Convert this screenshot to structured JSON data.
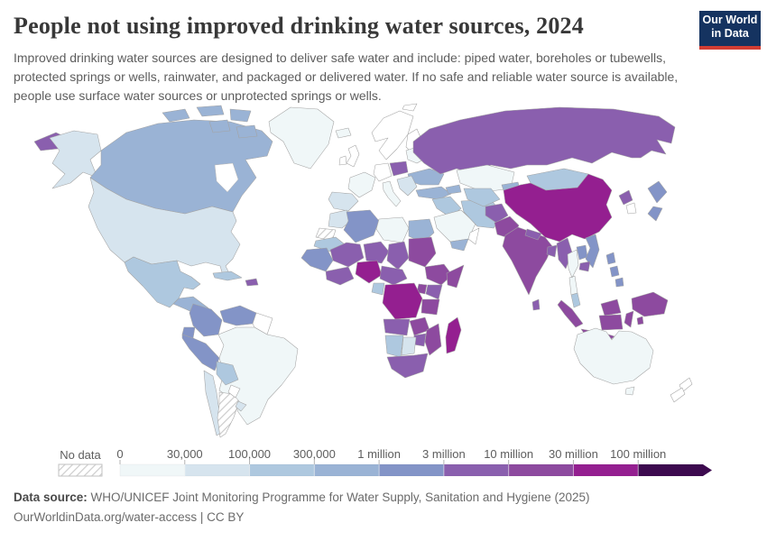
{
  "header": {
    "title": "People not using improved drinking water sources, 2024",
    "subtitle": "Improved drinking water sources are designed to deliver safe water and include: piped water, boreholes or tubewells, protected springs or wells, rainwater, and packaged or delivered water. If no safe and reliable water source is available, people use surface water sources or unprotected springs or wells.",
    "logo": {
      "line1": "Our World",
      "line2": "in Data",
      "bg_color": "#153360",
      "accent_color": "#d23d33"
    }
  },
  "footer": {
    "source_label": "Data source:",
    "source_text": " WHO/UNICEF Joint Monitoring Programme for Water Supply, Sanitation and Hygiene (2025)",
    "note_text": "OurWorldinData.org/water-access | CC BY"
  },
  "chart_data": {
    "type": "choropleth",
    "title": "People not using improved drinking water sources",
    "year": "2024",
    "legend": {
      "no_data_label": "No data",
      "tick_labels": [
        "0",
        "30,000",
        "100,000",
        "300,000",
        "1 million",
        "3 million",
        "10 million",
        "30 million",
        "100 million"
      ],
      "bin_labels": [
        "0–30,000",
        "30,000–100,000",
        "100,000–300,000",
        "300,000–1 million",
        "1–3 million",
        "3–10 million",
        "10–30 million",
        "30–100 million",
        "100 million+"
      ],
      "colors": [
        "#f0f7f8",
        "#d6e4ee",
        "#aec8df",
        "#9ab3d5",
        "#8394c7",
        "#8a5fae",
        "#8d4a9f",
        "#941f90",
        "#3d0a4f"
      ],
      "zero_color": "#ffffff",
      "tick_color": "#b3b3b3",
      "label_color": "#5d5d5d"
    },
    "regions": [
      {
        "id": "chukotka",
        "name": "Russia (Far East)",
        "bin": 5
      },
      {
        "id": "alaska",
        "name": "United States (Alaska)",
        "bin": 1
      },
      {
        "id": "canada",
        "name": "Canada",
        "bin": 3
      },
      {
        "id": "arctic1",
        "name": "Canada (Arctic islands)",
        "bin": 3
      },
      {
        "id": "arctic2",
        "name": "Canada (Arctic islands)",
        "bin": 3
      },
      {
        "id": "arctic3",
        "name": "Canada (Arctic islands)",
        "bin": 3
      },
      {
        "id": "arctic4",
        "name": "Canada (Arctic islands)",
        "bin": 3
      },
      {
        "id": "arctic5",
        "name": "Canada (Arctic islands)",
        "bin": 3
      },
      {
        "id": "greenland",
        "name": "Greenland",
        "bin": 0
      },
      {
        "id": "usa",
        "name": "United States",
        "bin": 1
      },
      {
        "id": "mexico",
        "name": "Mexico",
        "bin": 2
      },
      {
        "id": "camerica",
        "name": "Central America",
        "bin": 3
      },
      {
        "id": "cuba",
        "name": "Cuba",
        "bin": 2
      },
      {
        "id": "haiti",
        "name": "Haiti",
        "bin": 5
      },
      {
        "id": "colombia",
        "name": "Colombia",
        "bin": 4
      },
      {
        "id": "venezuela",
        "name": "Venezuela",
        "bin": 4
      },
      {
        "id": "guyanas",
        "name": "Guyanas",
        "bin": "zero"
      },
      {
        "id": "brazil",
        "name": "Brazil",
        "bin": 0
      },
      {
        "id": "ecuador",
        "name": "Ecuador",
        "bin": 4
      },
      {
        "id": "peru",
        "name": "Peru",
        "bin": 4
      },
      {
        "id": "bolivia",
        "name": "Bolivia",
        "bin": 2
      },
      {
        "id": "chile",
        "name": "Chile",
        "bin": 1
      },
      {
        "id": "argentina",
        "name": "Argentina",
        "bin": "nodata"
      },
      {
        "id": "paraguay",
        "name": "Paraguay",
        "bin": "zero"
      },
      {
        "id": "uruguay",
        "name": "Uruguay",
        "bin": 1
      },
      {
        "id": "iceland",
        "name": "Iceland",
        "bin": 0
      },
      {
        "id": "svalbard",
        "name": "Svalbard",
        "bin": "zero"
      },
      {
        "id": "uk",
        "name": "United Kingdom",
        "bin": "zero"
      },
      {
        "id": "ireland",
        "name": "Ireland",
        "bin": "zero"
      },
      {
        "id": "scandinavia",
        "name": "Scandinavia",
        "bin": "zero"
      },
      {
        "id": "finland",
        "name": "Finland",
        "bin": "zero"
      },
      {
        "id": "france",
        "name": "France",
        "bin": 0
      },
      {
        "id": "germany",
        "name": "Germany",
        "bin": "zero"
      },
      {
        "id": "poland",
        "name": "Poland",
        "bin": 5
      },
      {
        "id": "baltics",
        "name": "Baltics & Belarus",
        "bin": 0
      },
      {
        "id": "ukraine",
        "name": "Ukraine",
        "bin": 3
      },
      {
        "id": "iberia",
        "name": "Spain & Portugal",
        "bin": 1
      },
      {
        "id": "italy",
        "name": "Italy",
        "bin": 0
      },
      {
        "id": "balkans",
        "name": "Balkans",
        "bin": 1
      },
      {
        "id": "morocco",
        "name": "Morocco",
        "bin": 1
      },
      {
        "id": "wsahara",
        "name": "Western Sahara",
        "bin": "nodata"
      },
      {
        "id": "mauritania",
        "name": "Mauritania",
        "bin": 2
      },
      {
        "id": "algeria",
        "name": "Algeria",
        "bin": 4
      },
      {
        "id": "libya",
        "name": "Libya",
        "bin": 0
      },
      {
        "id": "egypt",
        "name": "Egypt",
        "bin": 3
      },
      {
        "id": "mali",
        "name": "Mali",
        "bin": 5
      },
      {
        "id": "niger",
        "name": "Niger",
        "bin": 5
      },
      {
        "id": "chad",
        "name": "Chad",
        "bin": 5
      },
      {
        "id": "sudan",
        "name": "Sudan",
        "bin": 6
      },
      {
        "id": "wafrica",
        "name": "Senegal & Guinea",
        "bin": 4
      },
      {
        "id": "ghana",
        "name": "Ghana & Côte d'Ivoire",
        "bin": 5
      },
      {
        "id": "nigeria",
        "name": "Nigeria",
        "bin": 7
      },
      {
        "id": "cameroon",
        "name": "Cameroon & CAR",
        "bin": 5
      },
      {
        "id": "ethiopia",
        "name": "Ethiopia",
        "bin": 6
      },
      {
        "id": "somalia",
        "name": "Somalia",
        "bin": 6
      },
      {
        "id": "kenya",
        "name": "Kenya",
        "bin": 5
      },
      {
        "id": "uganda",
        "name": "Uganda",
        "bin": 6
      },
      {
        "id": "drc",
        "name": "Democratic Republic of Congo",
        "bin": 7
      },
      {
        "id": "tanzania",
        "name": "Tanzania",
        "bin": 6
      },
      {
        "id": "angola",
        "name": "Angola",
        "bin": 5
      },
      {
        "id": "zambia",
        "name": "Zambia",
        "bin": 6
      },
      {
        "id": "mozambique",
        "name": "Mozambique",
        "bin": 6
      },
      {
        "id": "zimbabwe",
        "name": "Zimbabwe",
        "bin": 5
      },
      {
        "id": "namibia",
        "name": "Namibia",
        "bin": 2
      },
      {
        "id": "botswana",
        "name": "Botswana",
        "bin": 1
      },
      {
        "id": "southafrica",
        "name": "South Africa",
        "bin": 5
      },
      {
        "id": "madagascar",
        "name": "Madagascar",
        "bin": 7
      },
      {
        "id": "gabon",
        "name": "Gabon & Congo",
        "bin": 2
      },
      {
        "id": "turkey",
        "name": "Turkey",
        "bin": 3
      },
      {
        "id": "syriairaq",
        "name": "Syria & Iraq",
        "bin": 2
      },
      {
        "id": "saudi",
        "name": "Saudi Arabia",
        "bin": 0
      },
      {
        "id": "yemen",
        "name": "Yemen",
        "bin": 3
      },
      {
        "id": "oman",
        "name": "Oman",
        "bin": "zero"
      },
      {
        "id": "iran",
        "name": "Iran",
        "bin": 2
      },
      {
        "id": "caucasus",
        "name": "Caucasus",
        "bin": 3
      },
      {
        "id": "russia",
        "name": "Russia",
        "bin": 5
      },
      {
        "id": "kazakhstan",
        "name": "Kazakhstan",
        "bin": 0
      },
      {
        "id": "uzbek",
        "name": "Uzbekistan & Turkmenistan",
        "bin": 2
      },
      {
        "id": "kyrgyz",
        "name": "Kyrgyzstan & Tajikistan",
        "bin": 3
      },
      {
        "id": "mongolia",
        "name": "Mongolia",
        "bin": 2
      },
      {
        "id": "china",
        "name": "China",
        "bin": 7
      },
      {
        "id": "nkorea",
        "name": "North Korea",
        "bin": 5
      },
      {
        "id": "skorea",
        "name": "South Korea",
        "bin": "zero"
      },
      {
        "id": "japan1",
        "name": "Japan",
        "bin": 4
      },
      {
        "id": "japan2",
        "name": "Japan",
        "bin": 4
      },
      {
        "id": "afghanistan",
        "name": "Afghanistan",
        "bin": 5
      },
      {
        "id": "pakistan",
        "name": "Pakistan",
        "bin": 6
      },
      {
        "id": "india",
        "name": "India",
        "bin": 6
      },
      {
        "id": "nepal",
        "name": "Nepal",
        "bin": 5
      },
      {
        "id": "bangladesh",
        "name": "Bangladesh",
        "bin": 5
      },
      {
        "id": "srilanka",
        "name": "Sri Lanka",
        "bin": 5
      },
      {
        "id": "myanmar",
        "name": "Myanmar",
        "bin": 5
      },
      {
        "id": "thailand",
        "name": "Thailand",
        "bin": 0
      },
      {
        "id": "laos",
        "name": "Laos",
        "bin": 4
      },
      {
        "id": "vietnam",
        "name": "Vietnam",
        "bin": 4
      },
      {
        "id": "cambodia",
        "name": "Cambodia",
        "bin": 5
      },
      {
        "id": "malaysia",
        "name": "Malaysia (peninsula)",
        "bin": 2
      },
      {
        "id": "borneomy",
        "name": "Malaysia (Borneo)",
        "bin": 6
      },
      {
        "id": "phil1",
        "name": "Philippines",
        "bin": 4
      },
      {
        "id": "phil2",
        "name": "Philippines",
        "bin": 4
      },
      {
        "id": "phil3",
        "name": "Philippines",
        "bin": 4
      },
      {
        "id": "sumatra",
        "name": "Indonesia (Sumatra)",
        "bin": 6
      },
      {
        "id": "java",
        "name": "Indonesia (Java)",
        "bin": 6
      },
      {
        "id": "kalimantan",
        "name": "Indonesia (Kalimantan)",
        "bin": 6
      },
      {
        "id": "sulawesi",
        "name": "Indonesia (Sulawesi)",
        "bin": 6
      },
      {
        "id": "moluccas",
        "name": "Indonesia (Moluccas)",
        "bin": 6
      },
      {
        "id": "timor",
        "name": "Timor",
        "bin": 6
      },
      {
        "id": "newguinea",
        "name": "Papua New Guinea",
        "bin": 6
      },
      {
        "id": "australia",
        "name": "Australia",
        "bin": 0
      },
      {
        "id": "tasmania",
        "name": "Australia (Tasmania)",
        "bin": 0
      },
      {
        "id": "nz1",
        "name": "New Zealand",
        "bin": "zero"
      },
      {
        "id": "nz2",
        "name": "New Zealand",
        "bin": "zero"
      }
    ]
  }
}
